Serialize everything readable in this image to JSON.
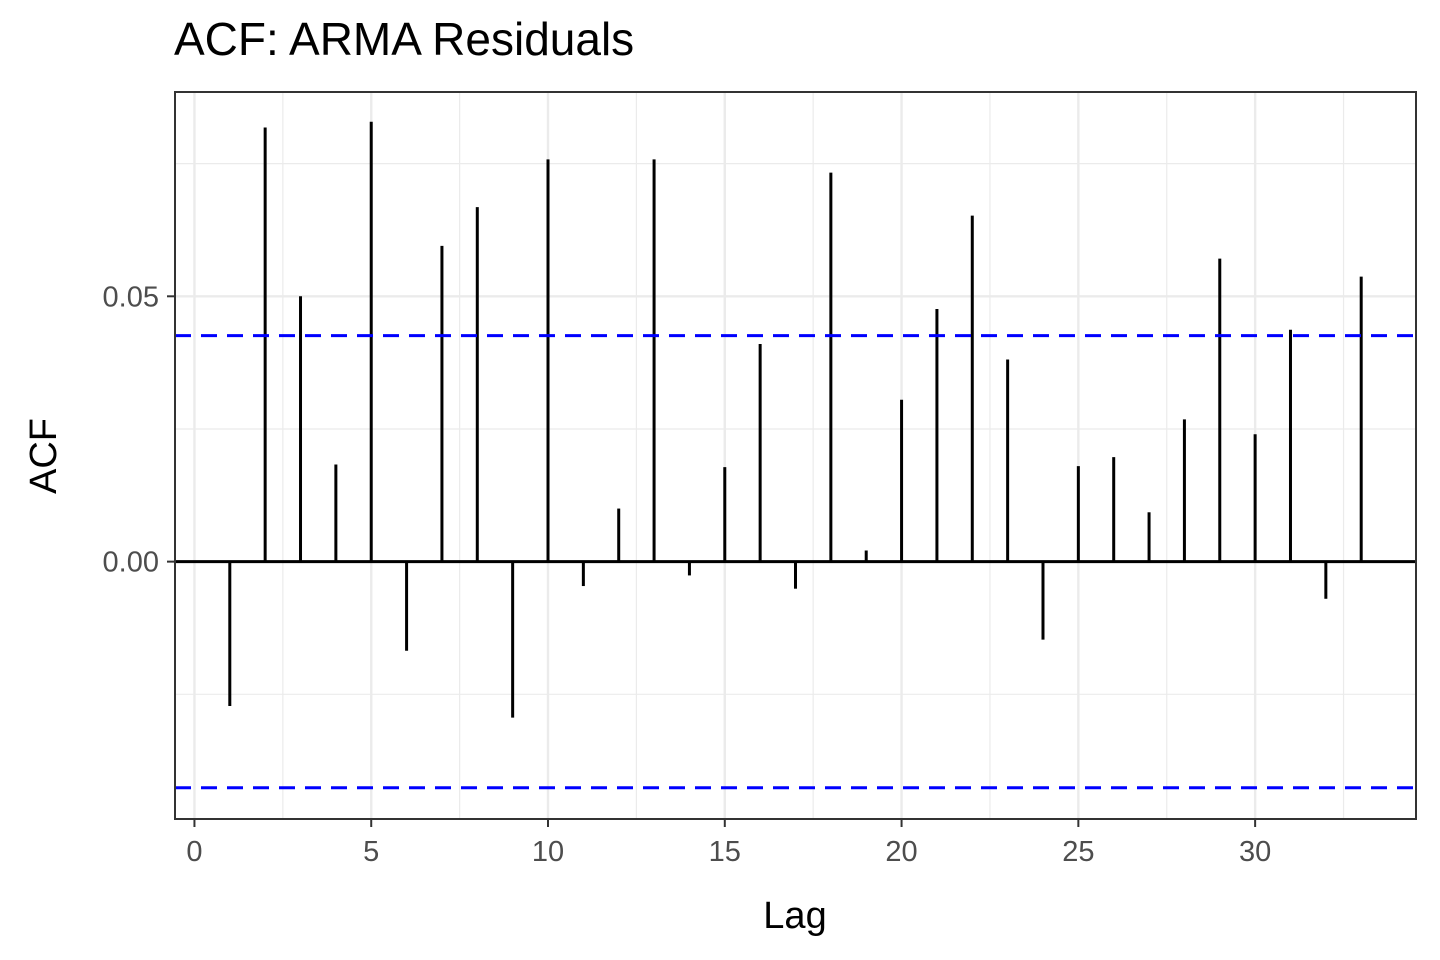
{
  "chart_data": {
    "type": "bar",
    "title": "ACF: ARMA Residuals",
    "xlabel": "Lag",
    "ylabel": "ACF",
    "xlim": [
      -0.55,
      34.55
    ],
    "ylim": [
      -0.0485,
      0.0885
    ],
    "x_ticks": [
      0,
      5,
      10,
      15,
      20,
      25,
      30
    ],
    "x_tick_labels": [
      "0",
      "5",
      "10",
      "15",
      "20",
      "25",
      "30"
    ],
    "y_ticks": [
      0.0,
      0.05
    ],
    "y_tick_labels": [
      "0.00",
      "0.05"
    ],
    "lags": [
      1,
      2,
      3,
      4,
      5,
      6,
      7,
      8,
      9,
      10,
      11,
      12,
      13,
      14,
      15,
      16,
      17,
      18,
      19,
      20,
      21,
      22,
      23,
      24,
      25,
      26,
      27,
      28,
      29,
      30,
      31,
      32,
      33
    ],
    "values": [
      -0.0272,
      0.0818,
      0.05,
      0.0183,
      0.0829,
      -0.0168,
      0.0595,
      0.0668,
      -0.0294,
      0.0758,
      -0.0046,
      0.01,
      0.0758,
      -0.0026,
      0.0178,
      0.041,
      -0.0051,
      0.0733,
      0.0021,
      0.0305,
      0.0476,
      0.0652,
      0.0381,
      -0.0147,
      0.018,
      0.0197,
      0.0093,
      0.0268,
      0.0571,
      0.024,
      0.0437,
      -0.007,
      0.0537
    ],
    "confidence_bound": 0.0426,
    "grid": true,
    "colors": {
      "bars": "#000000",
      "confidence_lines": "#0000ff",
      "grid": "#ebebeb",
      "panel_border": "#333333"
    }
  }
}
